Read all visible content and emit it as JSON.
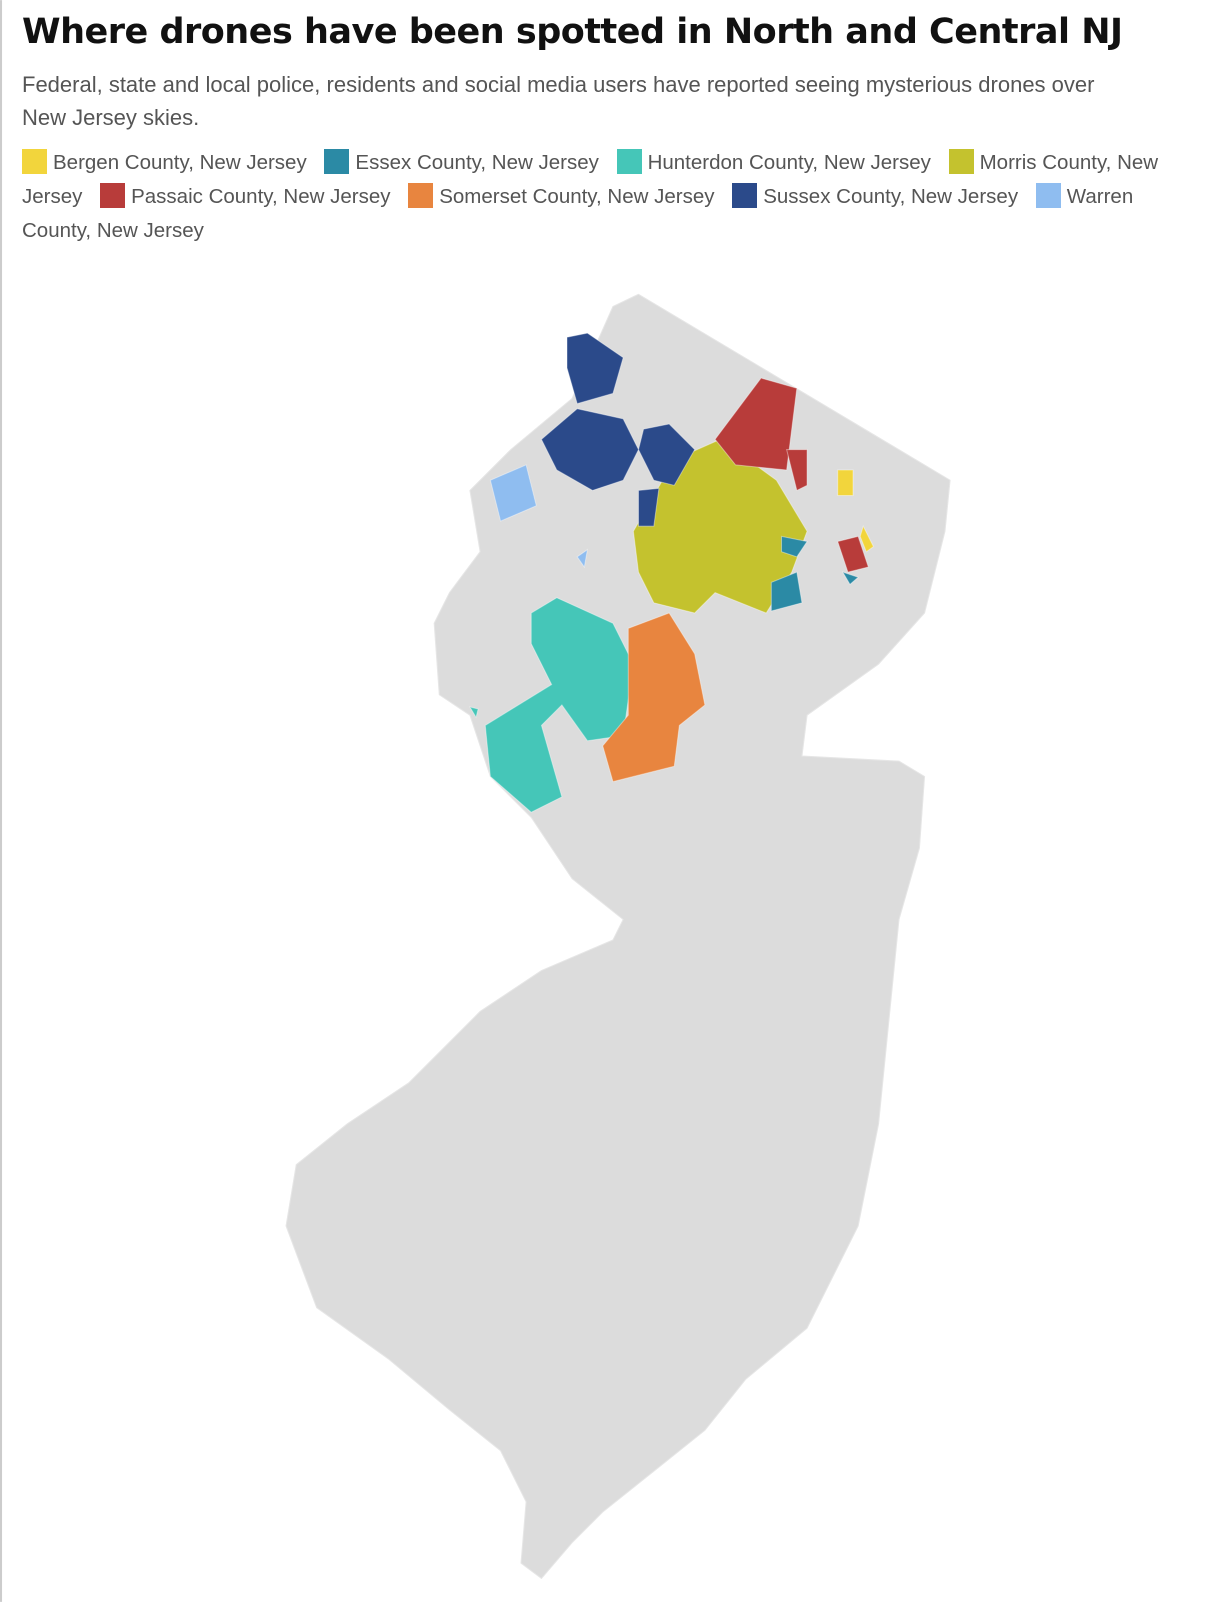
{
  "title": "Where drones have been spotted in North and Central NJ",
  "subtitle": "Federal, state and local police, residents and social media users have reported seeing mysterious drones over New Jersey skies.",
  "legend": [
    {
      "label": "Bergen County, New Jersey",
      "color": "#f2d53c"
    },
    {
      "label": "Essex County, New Jersey",
      "color": "#2b8aa5"
    },
    {
      "label": "Hunterdon County, New Jersey",
      "color": "#45c6b8"
    },
    {
      "label": "Morris County, New Jersey",
      "color": "#c4c22e"
    },
    {
      "label": "Passaic County, New Jersey",
      "color": "#b83c3a"
    },
    {
      "label": "Somerset County, New Jersey",
      "color": "#e8853f"
    },
    {
      "label": "Sussex County, New Jersey",
      "color": "#2b4a8a"
    },
    {
      "label": "Warren County, New Jersey",
      "color": "#8fbdf0"
    }
  ]
}
